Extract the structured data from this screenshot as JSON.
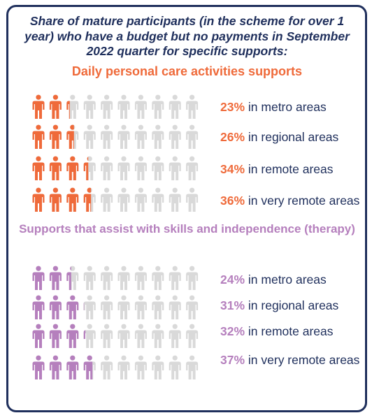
{
  "title": "Share of mature participants (in the scheme for over 1 year) who have a budget but no payments in September 2022 quarter for specific supports:",
  "colors": {
    "border": "#1f2f5c",
    "text": "#1f2f5c",
    "daily": "#ef6a3a",
    "therapy": "#b57fbd",
    "inactive": "#d9d9d9"
  },
  "icon": "person-icon",
  "chart_data": [
    {
      "type": "pictogram",
      "title": "Daily personal care activities supports",
      "icons_per_row": 10,
      "categories": [
        "in metro areas",
        "in regional areas",
        "in remote areas",
        "in very remote areas"
      ],
      "values": [
        23,
        26,
        34,
        36
      ],
      "labels": [
        "23%",
        "26%",
        "34%",
        "36%"
      ]
    },
    {
      "type": "pictogram",
      "title": "Supports that assist with skills and independence (therapy)",
      "icons_per_row": 10,
      "categories": [
        "in metro areas",
        "in regional areas",
        "in remote areas",
        "in very remote areas"
      ],
      "values": [
        24,
        31,
        32,
        37
      ],
      "labels": [
        "24%",
        "31%",
        "32%",
        "37%"
      ]
    }
  ]
}
